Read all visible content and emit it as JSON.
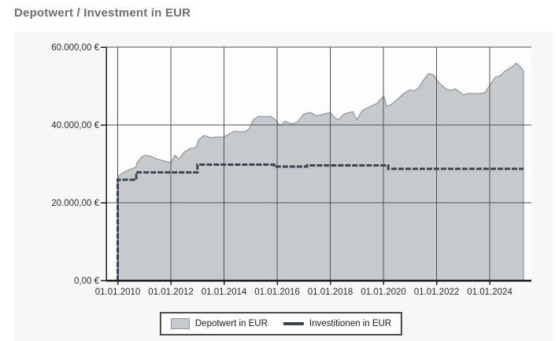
{
  "title": "Depotwert / Investment in EUR",
  "legend": {
    "depotwert_label": "Depotwert in EUR",
    "investitionen_label": "Investitionen in EUR"
  },
  "colors": {
    "page_bg": "#ffffff",
    "card_bg": "#f7f7f8",
    "plot_bg": "#fdfdfd",
    "area_fill": "#c6cacd",
    "area_stroke": "#8e959b",
    "invest_line": "#3a444f",
    "grid": "#515155",
    "axis": "#1e1e1e",
    "title_color": "#6e6e6e",
    "tick_label_color": "#2a2a2a",
    "legend_border": "#4a4a4c",
    "legend_bg": "#fdfdfd",
    "legend_text": "#1a1a1a"
  },
  "chart_data": {
    "type": "area",
    "title": "Depotwert / Investment in EUR",
    "xlabel": "",
    "ylabel": "",
    "grid": true,
    "legend_position": "bottom",
    "x_axis": {
      "ticks": [
        {
          "label": "01.01.2010",
          "year": 2010
        },
        {
          "label": "01.01.2012",
          "year": 2012
        },
        {
          "label": "01.01.2014",
          "year": 2014
        },
        {
          "label": "01.01.2016",
          "year": 2016
        },
        {
          "label": "01.01.2018",
          "year": 2018
        },
        {
          "label": "01.01.2020",
          "year": 2020
        },
        {
          "label": "01.01.2022",
          "year": 2022
        },
        {
          "label": "01.01.2024",
          "year": 2024
        }
      ],
      "range_years": [
        2009.57,
        2025.57
      ]
    },
    "y_axis": {
      "ticks": [
        {
          "label": "0,00 €",
          "value": 0
        },
        {
          "label": "20.000,00 €",
          "value": 20000
        },
        {
          "label": "40.000,00 €",
          "value": 40000
        },
        {
          "label": "60.000,00 €",
          "value": 60000
        }
      ],
      "range": [
        0,
        60000
      ]
    },
    "series": [
      {
        "name": "Depotwert in EUR",
        "type": "area",
        "points": [
          [
            2010.03,
            26800
          ],
          [
            2010.15,
            27500
          ],
          [
            2010.4,
            28400
          ],
          [
            2010.6,
            28900
          ],
          [
            2010.68,
            29100
          ],
          [
            2010.72,
            30200
          ],
          [
            2010.9,
            31800
          ],
          [
            2011.05,
            32200
          ],
          [
            2011.25,
            31900
          ],
          [
            2011.5,
            31200
          ],
          [
            2011.75,
            30700
          ],
          [
            2012.0,
            30300
          ],
          [
            2012.15,
            32200
          ],
          [
            2012.3,
            31200
          ],
          [
            2012.5,
            33000
          ],
          [
            2012.75,
            34000
          ],
          [
            2012.95,
            34200
          ],
          [
            2013.05,
            36200
          ],
          [
            2013.25,
            37300
          ],
          [
            2013.5,
            36700
          ],
          [
            2013.75,
            36900
          ],
          [
            2014.0,
            36900
          ],
          [
            2014.2,
            37700
          ],
          [
            2014.4,
            38400
          ],
          [
            2014.6,
            38200
          ],
          [
            2014.8,
            38300
          ],
          [
            2014.95,
            39000
          ],
          [
            2015.1,
            41300
          ],
          [
            2015.3,
            42200
          ],
          [
            2015.55,
            42100
          ],
          [
            2015.75,
            42200
          ],
          [
            2015.9,
            41500
          ],
          [
            2016.0,
            40800
          ],
          [
            2016.12,
            39800
          ],
          [
            2016.3,
            41000
          ],
          [
            2016.5,
            40300
          ],
          [
            2016.75,
            40600
          ],
          [
            2017.0,
            42800
          ],
          [
            2017.25,
            43200
          ],
          [
            2017.5,
            42300
          ],
          [
            2017.75,
            42800
          ],
          [
            2018.0,
            43200
          ],
          [
            2018.15,
            42000
          ],
          [
            2018.3,
            41300
          ],
          [
            2018.5,
            42700
          ],
          [
            2018.7,
            43200
          ],
          [
            2018.85,
            43400
          ],
          [
            2019.0,
            41300
          ],
          [
            2019.2,
            43700
          ],
          [
            2019.5,
            44700
          ],
          [
            2019.75,
            45500
          ],
          [
            2019.9,
            46600
          ],
          [
            2020.02,
            47400
          ],
          [
            2020.13,
            44700
          ],
          [
            2020.3,
            45300
          ],
          [
            2020.5,
            46400
          ],
          [
            2020.75,
            48000
          ],
          [
            2021.0,
            49100
          ],
          [
            2021.1,
            48700
          ],
          [
            2021.3,
            49300
          ],
          [
            2021.5,
            51500
          ],
          [
            2021.7,
            53200
          ],
          [
            2021.9,
            52800
          ],
          [
            2022.0,
            51600
          ],
          [
            2022.2,
            50100
          ],
          [
            2022.4,
            49100
          ],
          [
            2022.55,
            48900
          ],
          [
            2022.7,
            49300
          ],
          [
            2022.85,
            48600
          ],
          [
            2023.0,
            47700
          ],
          [
            2023.2,
            48100
          ],
          [
            2023.5,
            48000
          ],
          [
            2023.8,
            48200
          ],
          [
            2024.0,
            50100
          ],
          [
            2024.2,
            52200
          ],
          [
            2024.4,
            52700
          ],
          [
            2024.55,
            53700
          ],
          [
            2024.7,
            54400
          ],
          [
            2024.85,
            55000
          ],
          [
            2025.0,
            55900
          ],
          [
            2025.15,
            55000
          ],
          [
            2025.27,
            53900
          ]
        ]
      },
      {
        "name": "Investitionen in EUR",
        "type": "step-line",
        "points": [
          [
            2009.98,
            0
          ],
          [
            2010.0,
            25900
          ],
          [
            2010.7,
            27800
          ],
          [
            2013.0,
            29800
          ],
          [
            2015.88,
            29300
          ],
          [
            2017.13,
            29600
          ],
          [
            2020.18,
            28700
          ]
        ],
        "end_year": 2025.27
      }
    ]
  }
}
